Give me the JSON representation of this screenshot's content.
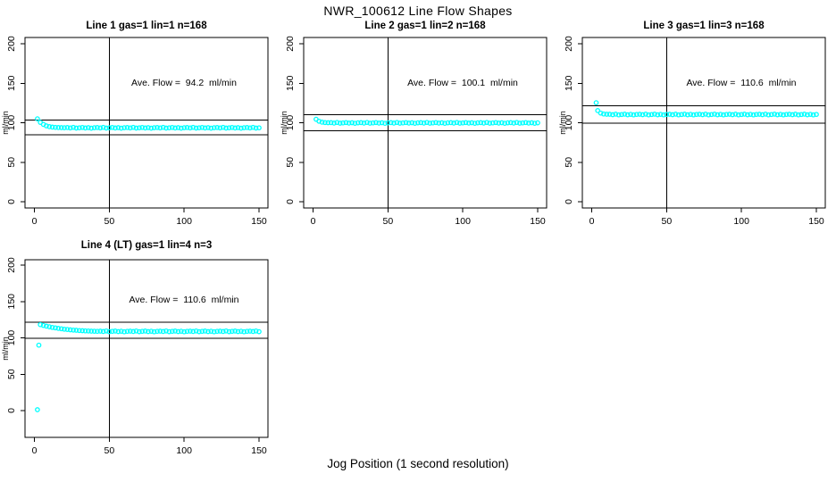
{
  "title": "NWR_100612  Line Flow Shapes",
  "xlabel": "Jog Position (1 second resolution)",
  "chart_data": {
    "type": "scatter",
    "layout": "4 panels: 3 top row, 1 bottom-left",
    "point_color": "#00FFFF",
    "axis_color": "#000000",
    "xlim": [
      0,
      150
    ],
    "ylim": [
      0,
      200
    ],
    "xticks": [
      0,
      50,
      100,
      150
    ],
    "yticks": [
      0,
      50,
      100,
      150,
      200
    ],
    "ylabel": "ml/min",
    "grid": "off",
    "plots": [
      {
        "title": "Line 1 gas=1 lin=1 n=168",
        "annotation": "Ave. Flow =  94.2  ml/min",
        "ave_flow": 94.2,
        "n": 168,
        "hline_upper": 103.6,
        "hline_lower": 84.8,
        "vline_x": 50,
        "points": [
          [
            2,
            105.0
          ],
          [
            4,
            100.5
          ],
          [
            6,
            97.8
          ],
          [
            8,
            96.1
          ],
          [
            10,
            95.0
          ],
          [
            12,
            94.5
          ],
          [
            14,
            94.1
          ],
          [
            16,
            93.9
          ],
          [
            18,
            93.8
          ],
          [
            20,
            93.7
          ],
          [
            22,
            93.9
          ],
          [
            24,
            93.4
          ],
          [
            26,
            94.1
          ],
          [
            28,
            93.2
          ],
          [
            30,
            93.6
          ],
          [
            32,
            94.0
          ],
          [
            34,
            93.3
          ],
          [
            36,
            93.8
          ],
          [
            38,
            93.1
          ],
          [
            40,
            93.7
          ],
          [
            42,
            93.9
          ],
          [
            44,
            93.4
          ],
          [
            46,
            94.1
          ],
          [
            48,
            93.2
          ],
          [
            50,
            93.6
          ],
          [
            52,
            94.0
          ],
          [
            54,
            93.3
          ],
          [
            56,
            93.8
          ],
          [
            58,
            93.1
          ],
          [
            60,
            93.7
          ],
          [
            62,
            93.9
          ],
          [
            64,
            93.4
          ],
          [
            66,
            94.1
          ],
          [
            68,
            93.2
          ],
          [
            70,
            93.6
          ],
          [
            72,
            94.0
          ],
          [
            74,
            93.3
          ],
          [
            76,
            93.8
          ],
          [
            78,
            93.1
          ],
          [
            80,
            93.7
          ],
          [
            82,
            93.9
          ],
          [
            84,
            93.4
          ],
          [
            86,
            94.1
          ],
          [
            88,
            93.2
          ],
          [
            90,
            93.6
          ],
          [
            92,
            94.0
          ],
          [
            94,
            93.3
          ],
          [
            96,
            93.8
          ],
          [
            98,
            93.1
          ],
          [
            100,
            93.7
          ],
          [
            102,
            93.9
          ],
          [
            104,
            93.4
          ],
          [
            106,
            94.1
          ],
          [
            108,
            93.2
          ],
          [
            110,
            93.6
          ],
          [
            112,
            94.0
          ],
          [
            114,
            93.3
          ],
          [
            116,
            93.8
          ],
          [
            118,
            93.1
          ],
          [
            120,
            93.7
          ],
          [
            122,
            93.9
          ],
          [
            124,
            93.4
          ],
          [
            126,
            94.1
          ],
          [
            128,
            93.2
          ],
          [
            130,
            93.6
          ],
          [
            132,
            94.0
          ],
          [
            134,
            93.3
          ],
          [
            136,
            93.8
          ],
          [
            138,
            93.1
          ],
          [
            140,
            93.7
          ],
          [
            142,
            93.9
          ],
          [
            144,
            93.4
          ],
          [
            146,
            94.1
          ],
          [
            148,
            93.2
          ],
          [
            150,
            93.6
          ]
        ]
      },
      {
        "title": "Line 2 gas=1 lin=2 n=168",
        "annotation": "Ave. Flow =  100.1  ml/min",
        "ave_flow": 100.1,
        "n": 168,
        "hline_upper": 110.1,
        "hline_lower": 90.1,
        "vline_x": 50,
        "points": [
          [
            2,
            104.4
          ],
          [
            4,
            101.9
          ],
          [
            6,
            100.7
          ],
          [
            8,
            100.2
          ],
          [
            10,
            100.0
          ],
          [
            12,
            100.1
          ],
          [
            14,
            99.6
          ],
          [
            16,
            100.3
          ],
          [
            18,
            99.4
          ],
          [
            20,
            99.8
          ],
          [
            22,
            100.2
          ],
          [
            24,
            99.5
          ],
          [
            26,
            100.0
          ],
          [
            28,
            99.3
          ],
          [
            30,
            99.9
          ],
          [
            32,
            100.1
          ],
          [
            34,
            99.6
          ],
          [
            36,
            100.3
          ],
          [
            38,
            99.4
          ],
          [
            40,
            99.8
          ],
          [
            42,
            100.2
          ],
          [
            44,
            99.5
          ],
          [
            46,
            100.0
          ],
          [
            48,
            99.3
          ],
          [
            50,
            99.9
          ],
          [
            52,
            100.1
          ],
          [
            54,
            99.6
          ],
          [
            56,
            100.3
          ],
          [
            58,
            99.4
          ],
          [
            60,
            99.8
          ],
          [
            62,
            100.2
          ],
          [
            64,
            99.5
          ],
          [
            66,
            100.0
          ],
          [
            68,
            99.3
          ],
          [
            70,
            99.9
          ],
          [
            72,
            100.1
          ],
          [
            74,
            99.6
          ],
          [
            76,
            100.3
          ],
          [
            78,
            99.4
          ],
          [
            80,
            99.8
          ],
          [
            82,
            100.2
          ],
          [
            84,
            99.5
          ],
          [
            86,
            100.0
          ],
          [
            88,
            99.3
          ],
          [
            90,
            99.9
          ],
          [
            92,
            100.1
          ],
          [
            94,
            99.6
          ],
          [
            96,
            100.3
          ],
          [
            98,
            99.4
          ],
          [
            100,
            99.8
          ],
          [
            102,
            100.2
          ],
          [
            104,
            99.5
          ],
          [
            106,
            100.0
          ],
          [
            108,
            99.3
          ],
          [
            110,
            99.9
          ],
          [
            112,
            100.1
          ],
          [
            114,
            99.6
          ],
          [
            116,
            100.3
          ],
          [
            118,
            99.4
          ],
          [
            120,
            99.8
          ],
          [
            122,
            100.2
          ],
          [
            124,
            99.5
          ],
          [
            126,
            100.0
          ],
          [
            128,
            99.3
          ],
          [
            130,
            99.9
          ],
          [
            132,
            100.1
          ],
          [
            134,
            99.6
          ],
          [
            136,
            100.3
          ],
          [
            138,
            99.4
          ],
          [
            140,
            99.8
          ],
          [
            142,
            100.2
          ],
          [
            144,
            99.5
          ],
          [
            146,
            100.0
          ],
          [
            148,
            99.3
          ],
          [
            150,
            99.9
          ]
        ]
      },
      {
        "title": "Line 3 gas=1 lin=3 n=168",
        "annotation": "Ave. Flow =  110.6  ml/min",
        "ave_flow": 110.6,
        "n": 168,
        "hline_upper": 121.7,
        "hline_lower": 99.5,
        "vline_x": 50,
        "points": [
          [
            3,
            125.3
          ],
          [
            4,
            115.4
          ],
          [
            6,
            112.2
          ],
          [
            8,
            111.1
          ],
          [
            10,
            110.7
          ],
          [
            12,
            110.7
          ],
          [
            14,
            110.2
          ],
          [
            16,
            110.9
          ],
          [
            18,
            110.0
          ],
          [
            20,
            110.4
          ],
          [
            22,
            110.8
          ],
          [
            24,
            110.1
          ],
          [
            26,
            110.6
          ],
          [
            28,
            109.9
          ],
          [
            30,
            110.5
          ],
          [
            32,
            110.7
          ],
          [
            34,
            110.2
          ],
          [
            36,
            110.9
          ],
          [
            38,
            110.0
          ],
          [
            40,
            110.4
          ],
          [
            42,
            110.8
          ],
          [
            44,
            110.1
          ],
          [
            46,
            110.6
          ],
          [
            48,
            109.9
          ],
          [
            50,
            110.5
          ],
          [
            52,
            110.7
          ],
          [
            54,
            110.2
          ],
          [
            56,
            110.9
          ],
          [
            58,
            110.0
          ],
          [
            60,
            110.4
          ],
          [
            62,
            110.8
          ],
          [
            64,
            110.1
          ],
          [
            66,
            110.6
          ],
          [
            68,
            109.9
          ],
          [
            70,
            110.5
          ],
          [
            72,
            110.7
          ],
          [
            74,
            110.2
          ],
          [
            76,
            110.9
          ],
          [
            78,
            110.0
          ],
          [
            80,
            110.4
          ],
          [
            82,
            110.8
          ],
          [
            84,
            110.1
          ],
          [
            86,
            110.6
          ],
          [
            88,
            109.9
          ],
          [
            90,
            110.5
          ],
          [
            92,
            110.7
          ],
          [
            94,
            110.2
          ],
          [
            96,
            110.9
          ],
          [
            98,
            110.0
          ],
          [
            100,
            110.4
          ],
          [
            102,
            110.8
          ],
          [
            104,
            110.1
          ],
          [
            106,
            110.6
          ],
          [
            108,
            109.9
          ],
          [
            110,
            110.5
          ],
          [
            112,
            110.7
          ],
          [
            114,
            110.2
          ],
          [
            116,
            110.9
          ],
          [
            118,
            110.0
          ],
          [
            120,
            110.4
          ],
          [
            122,
            110.8
          ],
          [
            124,
            110.1
          ],
          [
            126,
            110.6
          ],
          [
            128,
            109.9
          ],
          [
            130,
            110.5
          ],
          [
            132,
            110.7
          ],
          [
            134,
            110.2
          ],
          [
            136,
            110.9
          ],
          [
            138,
            110.0
          ],
          [
            140,
            110.4
          ],
          [
            142,
            110.8
          ],
          [
            144,
            110.1
          ],
          [
            146,
            110.6
          ],
          [
            148,
            109.9
          ],
          [
            150,
            110.5
          ]
        ]
      },
      {
        "title": "Line 4 (LT) gas=1 lin=4 n=3",
        "annotation": "Ave. Flow =  110.6  ml/min",
        "ave_flow": 110.6,
        "n": 3,
        "hline_upper": 121.7,
        "hline_lower": 99.5,
        "vline_x": 50,
        "points": [
          [
            2,
            1.2
          ],
          [
            3,
            90.0
          ],
          [
            4,
            118.2
          ],
          [
            6,
            117.1
          ],
          [
            8,
            116.1
          ],
          [
            10,
            115.2
          ],
          [
            12,
            114.4
          ],
          [
            14,
            113.7
          ],
          [
            16,
            113.0
          ],
          [
            18,
            112.5
          ],
          [
            20,
            111.9
          ],
          [
            22,
            111.5
          ],
          [
            24,
            111.1
          ],
          [
            26,
            110.7
          ],
          [
            28,
            110.4
          ],
          [
            30,
            110.1
          ],
          [
            32,
            109.8
          ],
          [
            34,
            109.6
          ],
          [
            36,
            109.4
          ],
          [
            38,
            109.2
          ],
          [
            40,
            109.1
          ],
          [
            42,
            108.9
          ],
          [
            44,
            109.2
          ],
          [
            46,
            108.7
          ],
          [
            48,
            109.4
          ],
          [
            50,
            108.5
          ],
          [
            52,
            108.9
          ],
          [
            54,
            109.3
          ],
          [
            56,
            108.6
          ],
          [
            58,
            109.1
          ],
          [
            60,
            108.4
          ],
          [
            62,
            109.0
          ],
          [
            64,
            109.2
          ],
          [
            66,
            108.7
          ],
          [
            68,
            109.4
          ],
          [
            70,
            108.5
          ],
          [
            72,
            108.9
          ],
          [
            74,
            109.3
          ],
          [
            76,
            108.6
          ],
          [
            78,
            109.1
          ],
          [
            80,
            108.4
          ],
          [
            82,
            109.0
          ],
          [
            84,
            109.2
          ],
          [
            86,
            108.7
          ],
          [
            88,
            109.4
          ],
          [
            90,
            108.5
          ],
          [
            92,
            108.9
          ],
          [
            94,
            109.3
          ],
          [
            96,
            108.6
          ],
          [
            98,
            109.1
          ],
          [
            100,
            108.4
          ],
          [
            102,
            109.0
          ],
          [
            104,
            109.2
          ],
          [
            106,
            108.7
          ],
          [
            108,
            109.4
          ],
          [
            110,
            108.5
          ],
          [
            112,
            108.9
          ],
          [
            114,
            109.3
          ],
          [
            116,
            108.6
          ],
          [
            118,
            109.1
          ],
          [
            120,
            108.4
          ],
          [
            122,
            109.0
          ],
          [
            124,
            109.2
          ],
          [
            126,
            108.7
          ],
          [
            128,
            109.4
          ],
          [
            130,
            108.5
          ],
          [
            132,
            108.9
          ],
          [
            134,
            109.3
          ],
          [
            136,
            108.6
          ],
          [
            138,
            109.1
          ],
          [
            140,
            108.4
          ],
          [
            142,
            109.0
          ],
          [
            144,
            109.2
          ],
          [
            146,
            108.7
          ],
          [
            148,
            109.4
          ],
          [
            150,
            108.5
          ]
        ]
      }
    ]
  }
}
